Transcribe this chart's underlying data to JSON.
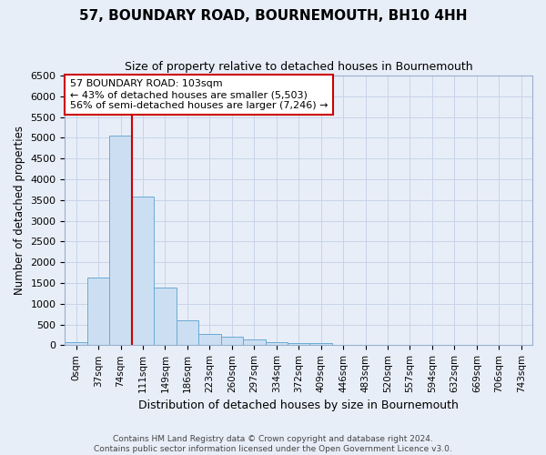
{
  "title": "57, BOUNDARY ROAD, BOURNEMOUTH, BH10 4HH",
  "subtitle": "Size of property relative to detached houses in Bournemouth",
  "xlabel": "Distribution of detached houses by size in Bournemouth",
  "ylabel": "Number of detached properties",
  "footer_line1": "Contains HM Land Registry data © Crown copyright and database right 2024.",
  "footer_line2": "Contains public sector information licensed under the Open Government Licence v3.0.",
  "annotation_line1": "57 BOUNDARY ROAD: 103sqm",
  "annotation_line2": "← 43% of detached houses are smaller (5,503)",
  "annotation_line3": "56% of semi-detached houses are larger (7,246) →",
  "bar_color": "#ccdff2",
  "bar_edge_color": "#6aaad4",
  "vline_color": "#cc0000",
  "grid_color": "#c8d4e8",
  "background_color": "#e8eef8",
  "bin_labels": [
    "0sqm",
    "37sqm",
    "74sqm",
    "111sqm",
    "149sqm",
    "186sqm",
    "223sqm",
    "260sqm",
    "297sqm",
    "334sqm",
    "372sqm",
    "409sqm",
    "446sqm",
    "483sqm",
    "520sqm",
    "557sqm",
    "594sqm",
    "632sqm",
    "669sqm",
    "706sqm",
    "743sqm"
  ],
  "bar_heights": [
    70,
    1640,
    5060,
    3590,
    1390,
    590,
    260,
    200,
    130,
    80,
    50,
    50,
    0,
    0,
    0,
    0,
    0,
    0,
    0,
    0,
    0
  ],
  "ylim": [
    0,
    6500
  ],
  "yticks": [
    0,
    500,
    1000,
    1500,
    2000,
    2500,
    3000,
    3500,
    4000,
    4500,
    5000,
    5500,
    6000,
    6500
  ]
}
